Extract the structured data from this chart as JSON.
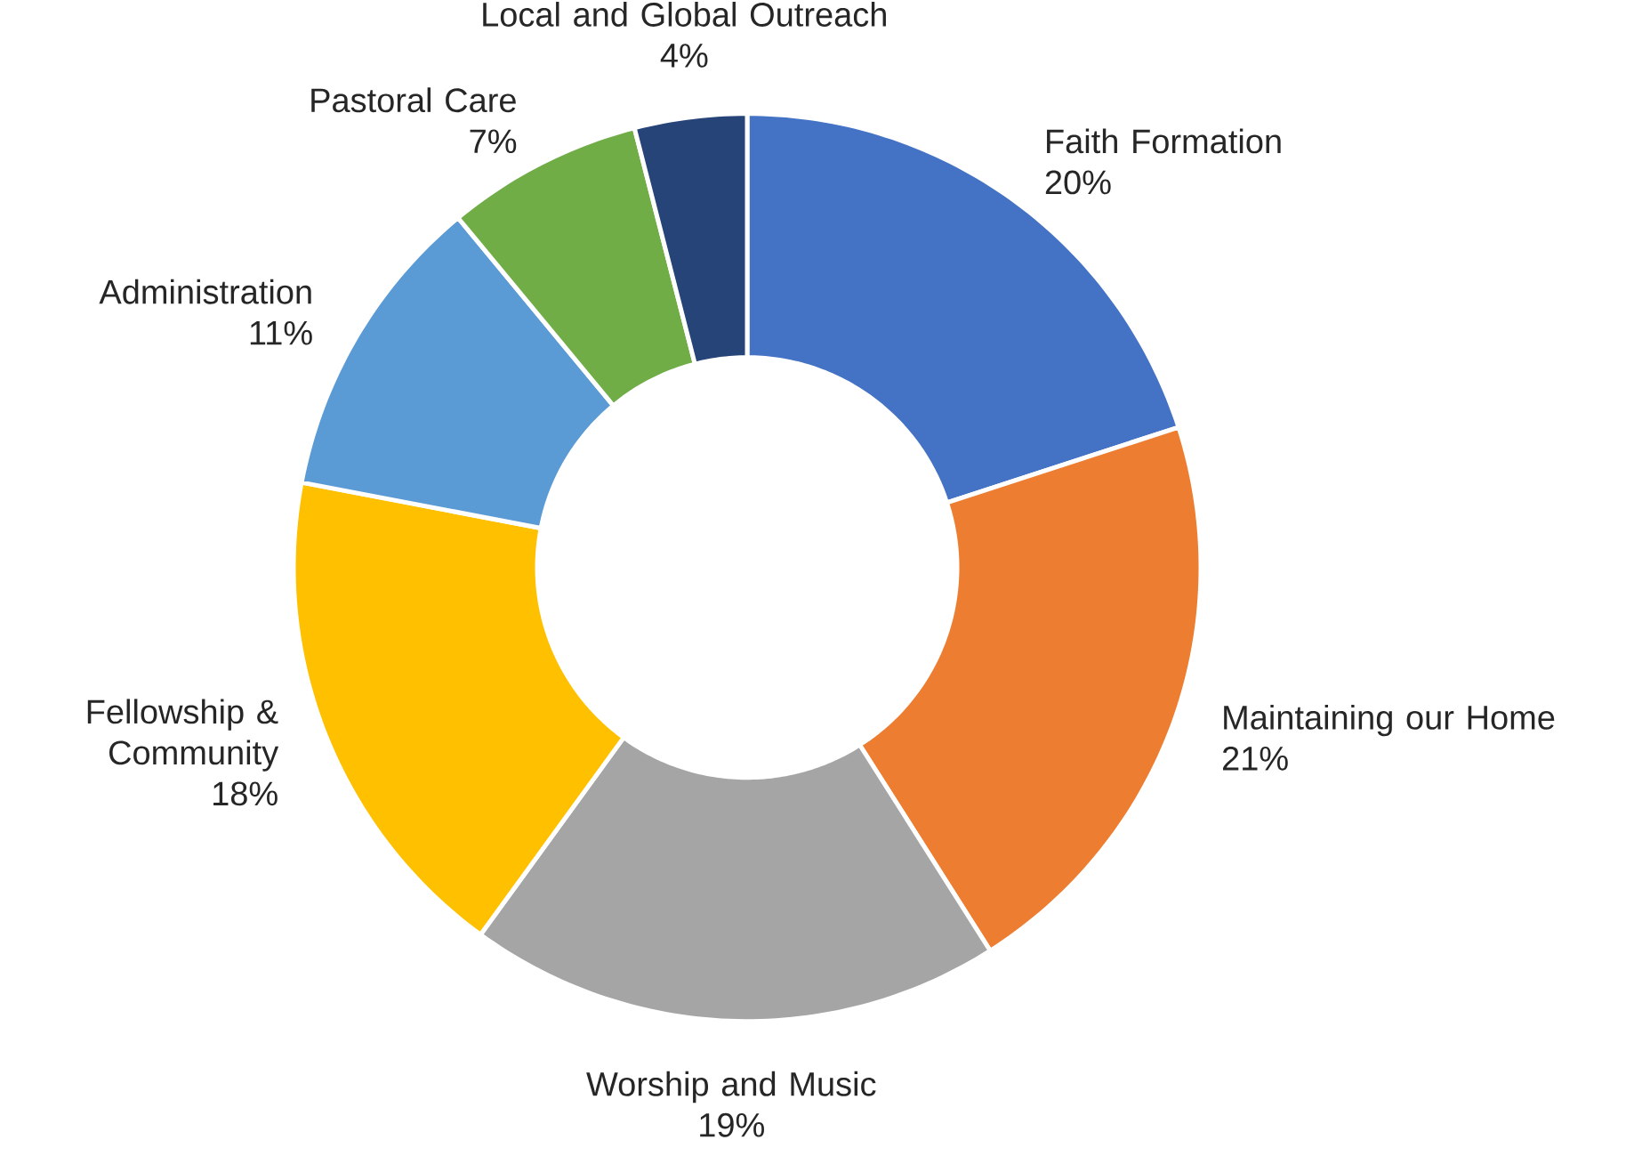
{
  "chart_data": {
    "type": "donut",
    "categories": [
      "Faith Formation",
      "Maintaining our Home",
      "Worship and Music",
      "Fellowship & Community",
      "Administration",
      "Pastoral Care",
      "Local and Global Outreach"
    ],
    "values": [
      20,
      21,
      19,
      18,
      11,
      7,
      4
    ],
    "value_labels": [
      "20%",
      "21%",
      "19%",
      "18%",
      "11%",
      "7%",
      "4%"
    ],
    "colors": [
      "#4472c4",
      "#ed7d31",
      "#a5a5a5",
      "#ffc000",
      "#5b9bd5",
      "#70ad47",
      "#264478"
    ]
  }
}
